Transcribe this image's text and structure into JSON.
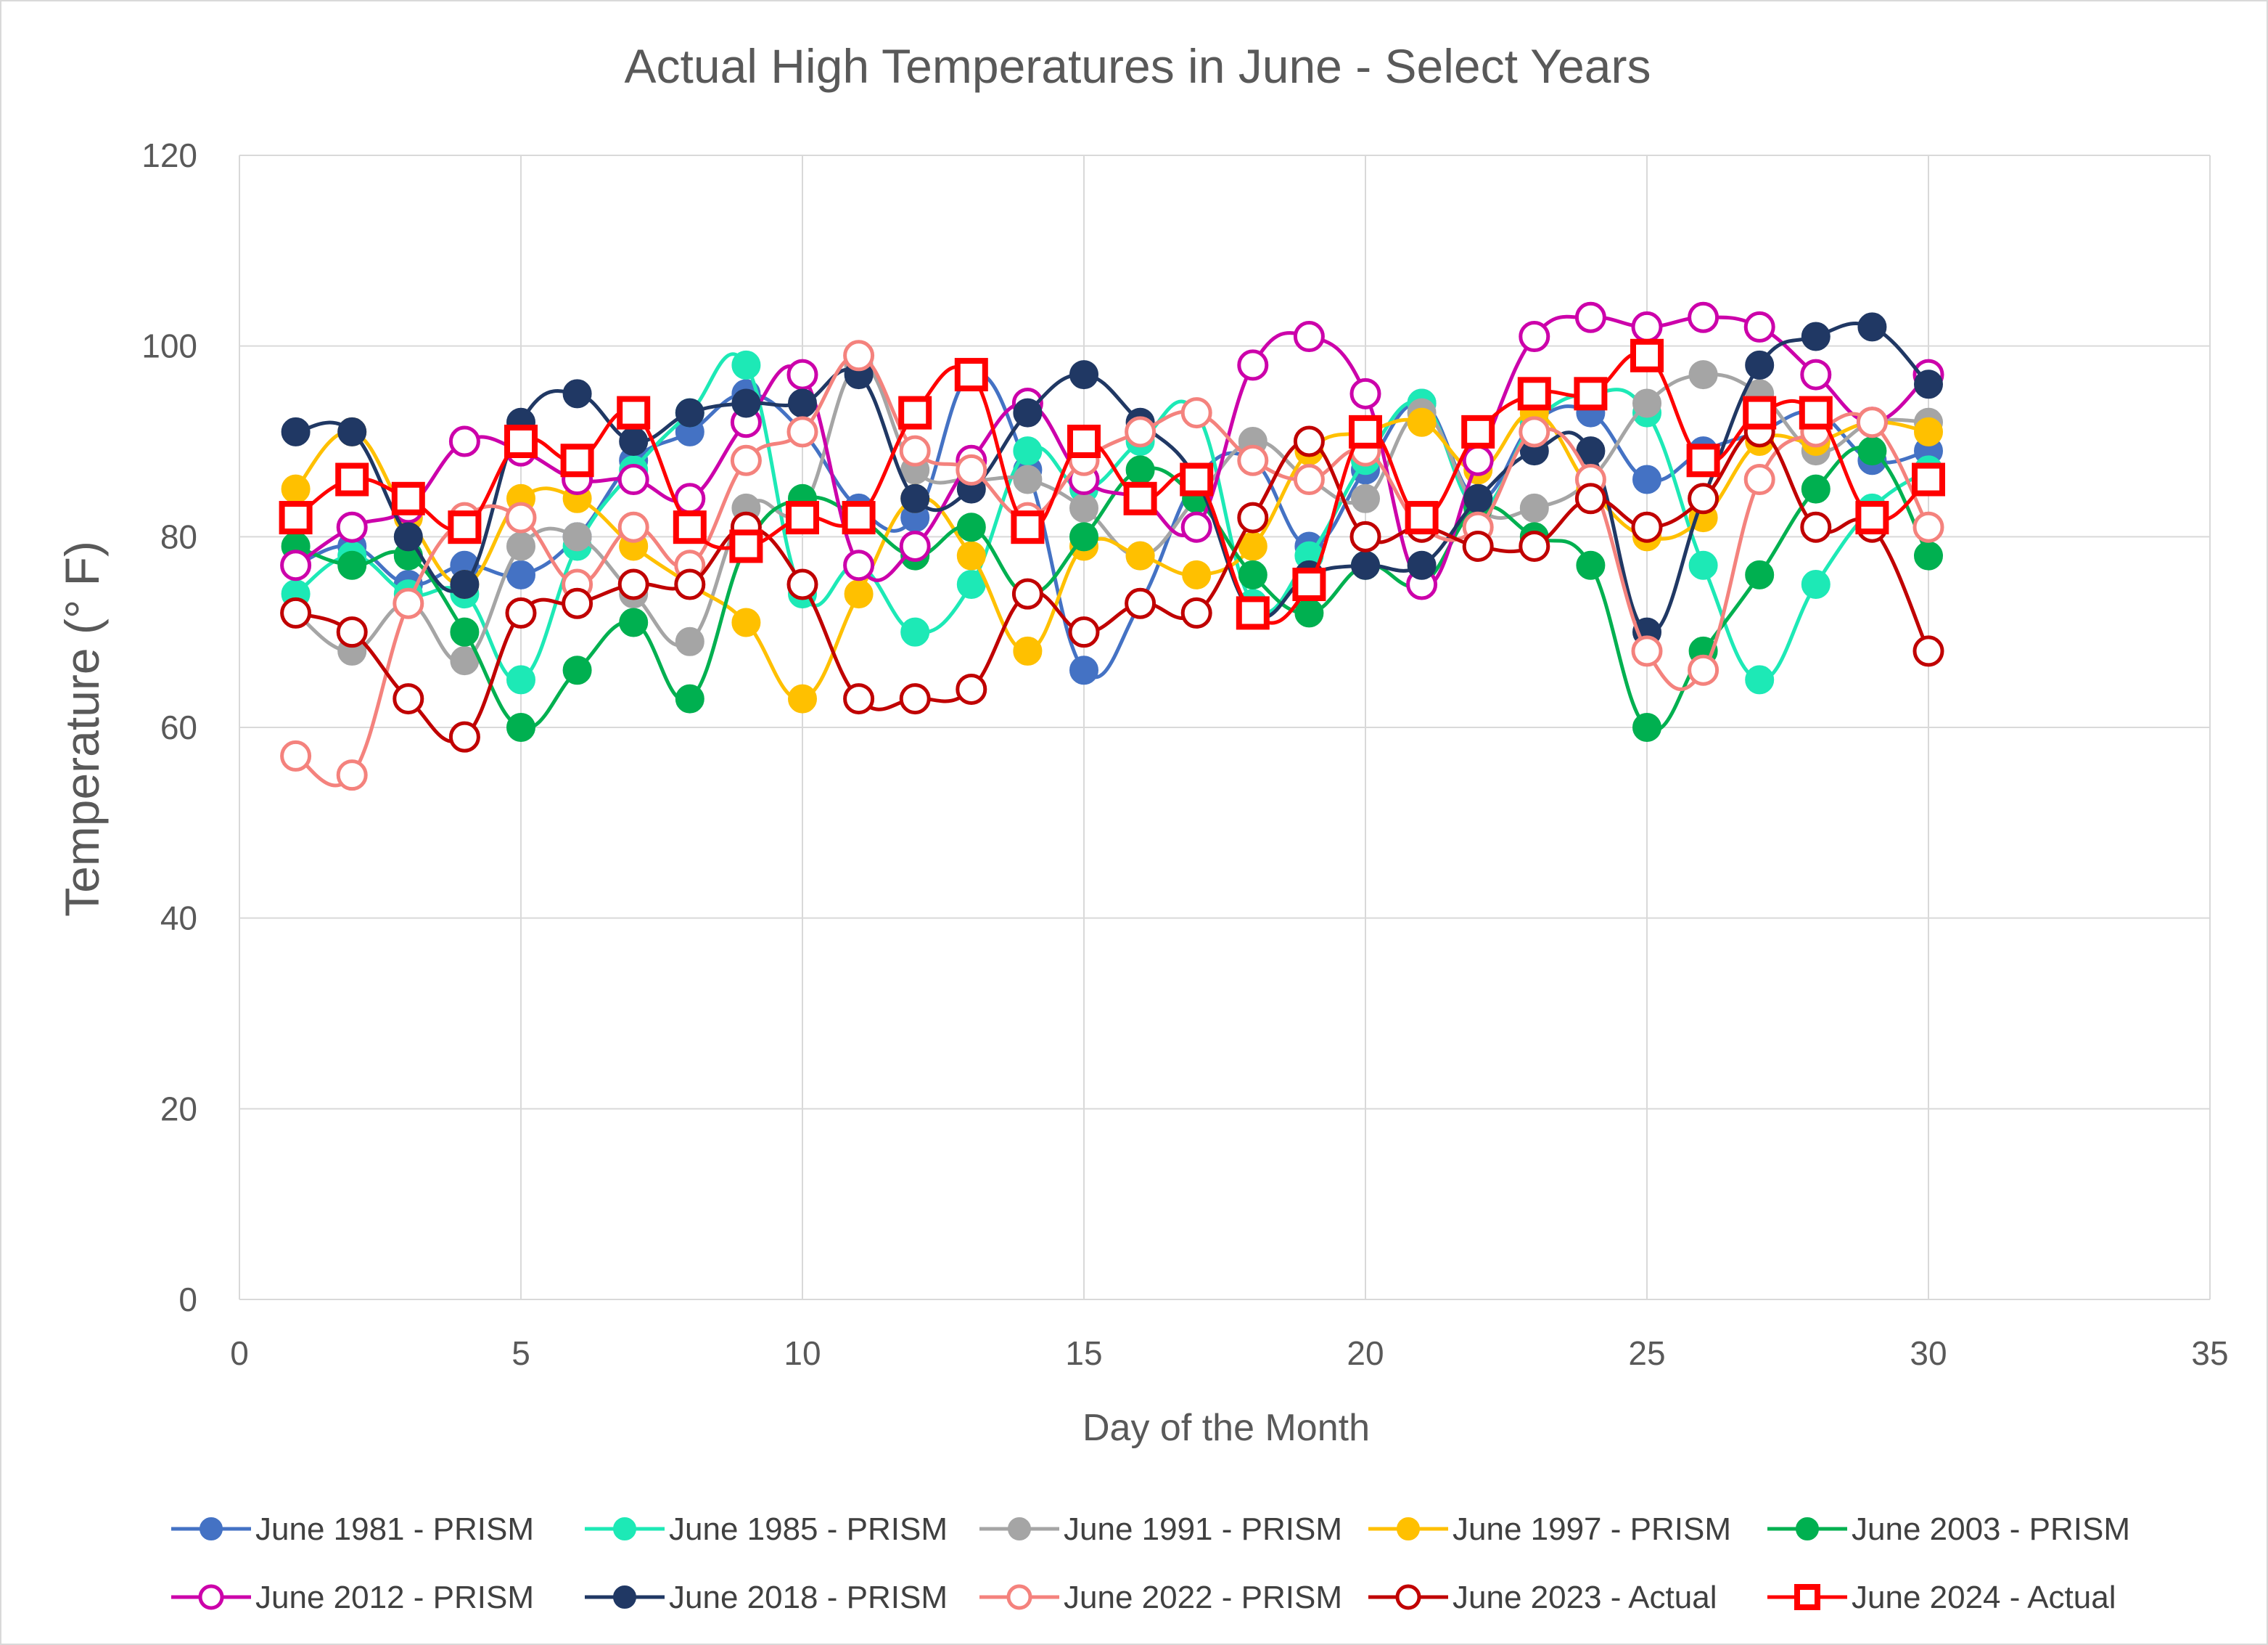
{
  "chart_data": {
    "type": "line",
    "title": "Actual High Temperatures in June - Select Years",
    "xlabel": "Day of the Month",
    "ylabel": "Temperature (° F)",
    "xlim": [
      0,
      35
    ],
    "ylim": [
      0,
      120
    ],
    "xticks": [
      0,
      5,
      10,
      15,
      20,
      25,
      30,
      35
    ],
    "yticks": [
      0,
      20,
      40,
      60,
      80,
      100,
      120
    ],
    "grid": true,
    "legend_position": "bottom",
    "x": [
      1,
      2,
      3,
      4,
      5,
      6,
      7,
      8,
      9,
      10,
      11,
      12,
      13,
      14,
      15,
      16,
      17,
      18,
      19,
      20,
      21,
      22,
      23,
      24,
      25,
      26,
      27,
      28,
      29,
      30
    ],
    "series": [
      {
        "name": "June 1981 - PRISM",
        "color": "#4472C4",
        "marker": "filled-circle",
        "values": [
          77,
          79,
          75,
          77,
          76,
          80,
          88,
          91,
          95,
          91,
          83,
          82,
          97,
          87,
          66,
          73,
          86,
          88,
          79,
          87,
          94,
          84,
          92,
          93,
          86,
          89,
          91,
          93,
          88,
          89
        ]
      },
      {
        "name": "June 1985 - PRISM",
        "color": "#1DE9B6",
        "marker": "filled-circle",
        "values": [
          74,
          78,
          74,
          74,
          65,
          79,
          87,
          93,
          98,
          74,
          77,
          70,
          75,
          89,
          85,
          90,
          93,
          73,
          78,
          88,
          94,
          83,
          92,
          95,
          93,
          77,
          65,
          75,
          83,
          87
        ]
      },
      {
        "name": "June 1991 - PRISM",
        "color": "#A5A5A5",
        "marker": "filled-circle",
        "values": [
          72,
          68,
          73,
          67,
          79,
          80,
          74,
          69,
          83,
          83,
          98,
          87,
          86,
          86,
          83,
          78,
          84,
          90,
          86,
          84,
          93,
          83,
          83,
          86,
          94,
          97,
          95,
          89,
          92,
          92
        ]
      },
      {
        "name": "June 1997 - PRISM",
        "color": "#FFC000",
        "marker": "filled-circle",
        "values": [
          85,
          91,
          82,
          75,
          84,
          84,
          79,
          75,
          71,
          63,
          74,
          84,
          78,
          68,
          79,
          78,
          76,
          79,
          89,
          91,
          92,
          87,
          93,
          85,
          80,
          82,
          90,
          90,
          92,
          91
        ]
      },
      {
        "name": "June 2003 - PRISM",
        "color": "#00B050",
        "marker": "filled-circle",
        "values": [
          79,
          77,
          78,
          70,
          60,
          66,
          71,
          63,
          79,
          84,
          82,
          78,
          81,
          74,
          80,
          87,
          84,
          76,
          72,
          77,
          75,
          83,
          80,
          77,
          60,
          68,
          76,
          85,
          89,
          78
        ]
      },
      {
        "name": "June 2012 - PRISM",
        "color": "#CC00AA",
        "marker": "hollow-circle",
        "values": [
          77,
          81,
          83,
          90,
          89,
          86,
          86,
          84,
          92,
          97,
          77,
          79,
          88,
          94,
          86,
          84,
          81,
          98,
          101,
          95,
          75,
          88,
          101,
          103,
          102,
          103,
          102,
          97,
          92,
          97
        ]
      },
      {
        "name": "June 2018 - PRISM",
        "color": "#203864",
        "marker": "filled-circle",
        "values": [
          91,
          91,
          80,
          75,
          92,
          95,
          90,
          93,
          94,
          94,
          97,
          84,
          85,
          93,
          97,
          92,
          86,
          72,
          76,
          77,
          77,
          84,
          89,
          89,
          70,
          84,
          98,
          101,
          102,
          96
        ]
      },
      {
        "name": "June 2022 - PRISM",
        "color": "#F4827D",
        "marker": "hollow-circle",
        "values": [
          57,
          55,
          73,
          82,
          82,
          75,
          81,
          77,
          88,
          91,
          99,
          89,
          87,
          82,
          88,
          91,
          93,
          88,
          86,
          89,
          81,
          81,
          91,
          86,
          68,
          66,
          86,
          91,
          92,
          81
        ]
      },
      {
        "name": "June 2023 - Actual",
        "color": "#C00000",
        "marker": "hollow-circle",
        "values": [
          72,
          70,
          63,
          59,
          72,
          73,
          75,
          75,
          81,
          75,
          63,
          63,
          64,
          74,
          70,
          73,
          72,
          82,
          90,
          80,
          81,
          79,
          79,
          84,
          81,
          84,
          91,
          81,
          81,
          68
        ]
      },
      {
        "name": "June 2024 - Actual",
        "color": "#FF0000",
        "marker": "hollow-square",
        "values": [
          82,
          86,
          84,
          81,
          90,
          88,
          93,
          81,
          79,
          82,
          82,
          93,
          97,
          81,
          90,
          84,
          86,
          72,
          75,
          91,
          82,
          91,
          95,
          95,
          99,
          88,
          93,
          93,
          82,
          86
        ]
      }
    ]
  }
}
